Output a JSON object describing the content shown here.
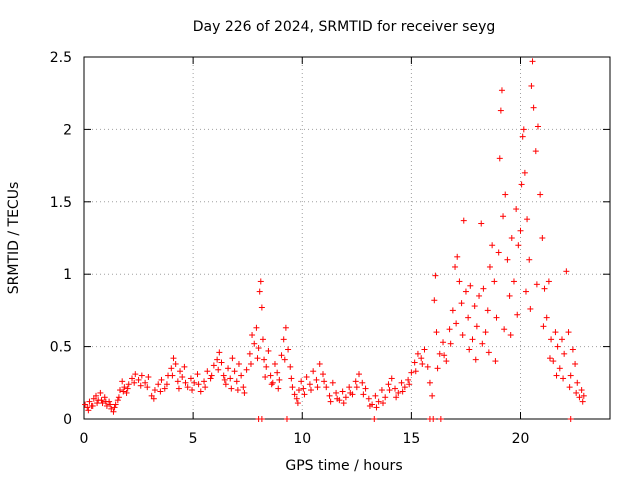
{
  "chart_data": {
    "type": "scatter",
    "title": "Day 226 of 2024, SRMTID for receiver seyg",
    "xlabel": "GPS time / hours",
    "ylabel": "SRMTID / TECUs",
    "xlim": [
      0,
      24.1
    ],
    "ylim": [
      0,
      2.5
    ],
    "x_ticks": [
      0,
      5,
      10,
      15,
      20
    ],
    "x_tick_labels": [
      "0",
      "5",
      "10",
      "15",
      "20"
    ],
    "y_ticks": [
      0,
      0.5,
      1,
      1.5,
      2,
      2.5
    ],
    "y_tick_labels": [
      "0",
      "0.5",
      "1",
      "1.5",
      "2",
      "2.5"
    ],
    "grid": true,
    "marker": "+",
    "color": "#ff0000",
    "series": [
      {
        "name": "SRMTID",
        "points": [
          [
            0.05,
            0.1
          ],
          [
            0.15,
            0.08
          ],
          [
            0.25,
            0.12
          ],
          [
            0.35,
            0.09
          ],
          [
            0.45,
            0.14
          ],
          [
            0.55,
            0.16
          ],
          [
            0.65,
            0.13
          ],
          [
            0.75,
            0.18
          ],
          [
            0.85,
            0.11
          ],
          [
            0.95,
            0.15
          ],
          [
            1.05,
            0.09
          ],
          [
            1.15,
            0.12
          ],
          [
            1.25,
            0.07
          ],
          [
            1.35,
            0.05
          ],
          [
            1.45,
            0.1
          ],
          [
            1.55,
            0.13
          ],
          [
            1.65,
            0.2
          ],
          [
            1.75,
            0.26
          ],
          [
            1.85,
            0.22
          ],
          [
            1.95,
            0.18
          ],
          [
            2.05,
            0.24
          ],
          [
            2.2,
            0.28
          ],
          [
            2.35,
            0.31
          ],
          [
            2.5,
            0.27
          ],
          [
            2.65,
            0.3
          ],
          [
            2.8,
            0.25
          ],
          [
            2.95,
            0.29
          ],
          [
            3.1,
            0.16
          ],
          [
            3.25,
            0.2
          ],
          [
            3.4,
            0.24
          ],
          [
            3.55,
            0.27
          ],
          [
            3.7,
            0.21
          ],
          [
            3.85,
            0.3
          ],
          [
            4.0,
            0.35
          ],
          [
            4.1,
            0.42
          ],
          [
            4.2,
            0.38
          ],
          [
            4.3,
            0.26
          ],
          [
            4.4,
            0.33
          ],
          [
            4.5,
            0.29
          ],
          [
            4.6,
            0.36
          ],
          [
            4.75,
            0.22
          ],
          [
            4.9,
            0.28
          ],
          [
            5.05,
            0.25
          ],
          [
            5.2,
            0.31
          ],
          [
            5.35,
            0.19
          ],
          [
            5.5,
            0.26
          ],
          [
            5.65,
            0.33
          ],
          [
            5.8,
            0.28
          ],
          [
            5.95,
            0.37
          ],
          [
            6.1,
            0.41
          ],
          [
            6.2,
            0.46
          ],
          [
            6.3,
            0.39
          ],
          [
            6.4,
            0.3
          ],
          [
            6.5,
            0.24
          ],
          [
            6.6,
            0.35
          ],
          [
            6.7,
            0.28
          ],
          [
            6.8,
            0.42
          ],
          [
            6.9,
            0.33
          ],
          [
            7.0,
            0.26
          ],
          [
            7.1,
            0.38
          ],
          [
            7.2,
            0.3
          ],
          [
            7.3,
            0.22
          ],
          [
            7.45,
            0.34
          ],
          [
            7.6,
            0.45
          ],
          [
            7.7,
            0.58
          ],
          [
            7.8,
            0.52
          ],
          [
            7.9,
            0.63
          ],
          [
            8.0,
            0.49
          ],
          [
            8.05,
            0.88
          ],
          [
            8.1,
            0.95
          ],
          [
            8.15,
            0.77
          ],
          [
            8.2,
            0.55
          ],
          [
            8.25,
            0.41
          ],
          [
            8.35,
            0.36
          ],
          [
            8.45,
            0.47
          ],
          [
            8.55,
            0.3
          ],
          [
            8.65,
            0.25
          ],
          [
            8.75,
            0.38
          ],
          [
            8.85,
            0.32
          ],
          [
            8.95,
            0.27
          ],
          [
            9.05,
            0.44
          ],
          [
            9.15,
            0.55
          ],
          [
            9.25,
            0.63
          ],
          [
            9.35,
            0.48
          ],
          [
            9.45,
            0.36
          ],
          [
            9.55,
            0.22
          ],
          [
            9.65,
            0.17
          ],
          [
            9.75,
            0.14
          ],
          [
            9.85,
            0.2
          ],
          [
            9.95,
            0.26
          ],
          [
            10.05,
            0.21
          ],
          [
            10.2,
            0.29
          ],
          [
            10.35,
            0.24
          ],
          [
            10.5,
            0.33
          ],
          [
            10.65,
            0.27
          ],
          [
            10.8,
            0.38
          ],
          [
            10.95,
            0.31
          ],
          [
            11.1,
            0.22
          ],
          [
            11.25,
            0.16
          ],
          [
            11.4,
            0.25
          ],
          [
            11.55,
            0.18
          ],
          [
            11.7,
            0.13
          ],
          [
            11.85,
            0.19
          ],
          [
            12.0,
            0.15
          ],
          [
            12.15,
            0.22
          ],
          [
            12.3,
            0.17
          ],
          [
            12.45,
            0.26
          ],
          [
            12.6,
            0.31
          ],
          [
            12.75,
            0.25
          ],
          [
            12.9,
            0.21
          ],
          [
            13.05,
            0.14
          ],
          [
            13.2,
            0.1
          ],
          [
            13.35,
            0.16
          ],
          [
            13.5,
            0.12
          ],
          [
            13.65,
            0.2
          ],
          [
            13.8,
            0.15
          ],
          [
            13.95,
            0.24
          ],
          [
            14.1,
            0.28
          ],
          [
            14.25,
            0.21
          ],
          [
            14.4,
            0.18
          ],
          [
            14.55,
            0.25
          ],
          [
            14.7,
            0.22
          ],
          [
            14.85,
            0.27
          ],
          [
            15.0,
            0.32
          ],
          [
            15.15,
            0.39
          ],
          [
            15.3,
            0.45
          ],
          [
            15.45,
            0.42
          ],
          [
            15.6,
            0.48
          ],
          [
            15.75,
            0.36
          ],
          [
            15.85,
            0.25
          ],
          [
            15.95,
            0.16
          ],
          [
            16.05,
            0.82
          ],
          [
            16.1,
            0.99
          ],
          [
            16.15,
            0.6
          ],
          [
            16.3,
            0.45
          ],
          [
            16.45,
            0.53
          ],
          [
            16.6,
            0.4
          ],
          [
            16.75,
            0.62
          ],
          [
            16.9,
            0.75
          ],
          [
            17.0,
            1.05
          ],
          [
            17.1,
            1.12
          ],
          [
            17.2,
            0.95
          ],
          [
            17.3,
            0.8
          ],
          [
            17.4,
            1.37
          ],
          [
            17.5,
            0.88
          ],
          [
            17.6,
            0.7
          ],
          [
            17.7,
            0.92
          ],
          [
            17.8,
            0.55
          ],
          [
            17.9,
            0.78
          ],
          [
            18.0,
            0.64
          ],
          [
            18.1,
            0.85
          ],
          [
            18.2,
            1.35
          ],
          [
            18.3,
            0.9
          ],
          [
            18.4,
            0.6
          ],
          [
            18.5,
            0.75
          ],
          [
            18.6,
            1.05
          ],
          [
            18.7,
            1.2
          ],
          [
            18.8,
            0.95
          ],
          [
            18.9,
            0.7
          ],
          [
            19.0,
            1.15
          ],
          [
            19.05,
            1.8
          ],
          [
            19.1,
            2.13
          ],
          [
            19.15,
            2.27
          ],
          [
            19.2,
            1.4
          ],
          [
            19.3,
            1.55
          ],
          [
            19.4,
            1.1
          ],
          [
            19.5,
            0.85
          ],
          [
            19.6,
            1.25
          ],
          [
            19.7,
            0.95
          ],
          [
            19.8,
            1.45
          ],
          [
            19.9,
            1.2
          ],
          [
            20.0,
            1.3
          ],
          [
            20.05,
            1.62
          ],
          [
            20.1,
            1.95
          ],
          [
            20.15,
            2.0
          ],
          [
            20.2,
            1.7
          ],
          [
            20.3,
            1.38
          ],
          [
            20.4,
            1.1
          ],
          [
            20.5,
            2.3
          ],
          [
            20.55,
            2.47
          ],
          [
            20.6,
            2.15
          ],
          [
            20.7,
            1.85
          ],
          [
            20.8,
            2.02
          ],
          [
            20.9,
            1.55
          ],
          [
            21.0,
            1.25
          ],
          [
            21.1,
            0.9
          ],
          [
            21.2,
            0.7
          ],
          [
            21.3,
            0.95
          ],
          [
            21.4,
            0.55
          ],
          [
            21.5,
            0.4
          ],
          [
            21.6,
            0.6
          ],
          [
            21.7,
            0.5
          ],
          [
            21.8,
            0.35
          ],
          [
            21.9,
            0.55
          ],
          [
            22.0,
            0.45
          ],
          [
            22.1,
            1.02
          ],
          [
            22.2,
            0.6
          ],
          [
            22.3,
            0.3
          ],
          [
            22.4,
            0.48
          ],
          [
            22.5,
            0.38
          ],
          [
            22.6,
            0.25
          ],
          [
            22.7,
            0.15
          ],
          [
            22.8,
            0.2
          ],
          [
            22.9,
            0.16
          ],
          [
            0.2,
            0.06
          ],
          [
            0.4,
            0.09
          ],
          [
            0.6,
            0.11
          ],
          [
            0.8,
            0.13
          ],
          [
            1.0,
            0.12
          ],
          [
            1.2,
            0.1
          ],
          [
            1.4,
            0.08
          ],
          [
            1.6,
            0.15
          ],
          [
            1.8,
            0.19
          ],
          [
            2.0,
            0.21
          ],
          [
            2.3,
            0.25
          ],
          [
            2.6,
            0.23
          ],
          [
            2.9,
            0.22
          ],
          [
            3.2,
            0.14
          ],
          [
            3.5,
            0.19
          ],
          [
            3.8,
            0.24
          ],
          [
            4.05,
            0.3
          ],
          [
            4.35,
            0.21
          ],
          [
            4.65,
            0.25
          ],
          [
            4.95,
            0.2
          ],
          [
            5.25,
            0.24
          ],
          [
            5.55,
            0.22
          ],
          [
            5.85,
            0.3
          ],
          [
            6.15,
            0.34
          ],
          [
            6.45,
            0.27
          ],
          [
            6.75,
            0.21
          ],
          [
            7.05,
            0.2
          ],
          [
            7.35,
            0.18
          ],
          [
            7.65,
            0.38
          ],
          [
            7.95,
            0.42
          ],
          [
            8.3,
            0.29
          ],
          [
            8.6,
            0.24
          ],
          [
            8.9,
            0.21
          ],
          [
            9.2,
            0.41
          ],
          [
            9.5,
            0.28
          ],
          [
            9.8,
            0.11
          ],
          [
            10.1,
            0.17
          ],
          [
            10.4,
            0.2
          ],
          [
            10.7,
            0.22
          ],
          [
            11.0,
            0.26
          ],
          [
            11.3,
            0.12
          ],
          [
            11.6,
            0.14
          ],
          [
            11.9,
            0.11
          ],
          [
            12.2,
            0.18
          ],
          [
            12.5,
            0.22
          ],
          [
            12.8,
            0.17
          ],
          [
            13.1,
            0.09
          ],
          [
            13.4,
            0.08
          ],
          [
            13.7,
            0.11
          ],
          [
            14.0,
            0.2
          ],
          [
            14.3,
            0.15
          ],
          [
            14.6,
            0.19
          ],
          [
            14.9,
            0.24
          ],
          [
            15.2,
            0.33
          ],
          [
            15.5,
            0.38
          ],
          [
            16.2,
            0.35
          ],
          [
            16.5,
            0.44
          ],
          [
            16.8,
            0.52
          ],
          [
            17.05,
            0.66
          ],
          [
            17.35,
            0.58
          ],
          [
            17.65,
            0.48
          ],
          [
            17.95,
            0.41
          ],
          [
            18.25,
            0.52
          ],
          [
            18.55,
            0.46
          ],
          [
            18.85,
            0.4
          ],
          [
            19.25,
            0.62
          ],
          [
            19.55,
            0.58
          ],
          [
            19.85,
            0.72
          ],
          [
            20.25,
            0.88
          ],
          [
            20.45,
            0.76
          ],
          [
            20.75,
            0.93
          ],
          [
            21.05,
            0.64
          ],
          [
            21.35,
            0.42
          ],
          [
            21.65,
            0.3
          ],
          [
            21.95,
            0.28
          ],
          [
            22.25,
            0.22
          ],
          [
            22.55,
            0.18
          ],
          [
            22.85,
            0.12
          ],
          [
            8.0,
            0.0
          ],
          [
            8.15,
            0.0
          ],
          [
            9.3,
            0.0
          ],
          [
            13.3,
            0.0
          ],
          [
            15.85,
            0.0
          ],
          [
            16.0,
            0.0
          ],
          [
            16.35,
            0.0
          ],
          [
            22.3,
            0.0
          ]
        ]
      }
    ]
  }
}
